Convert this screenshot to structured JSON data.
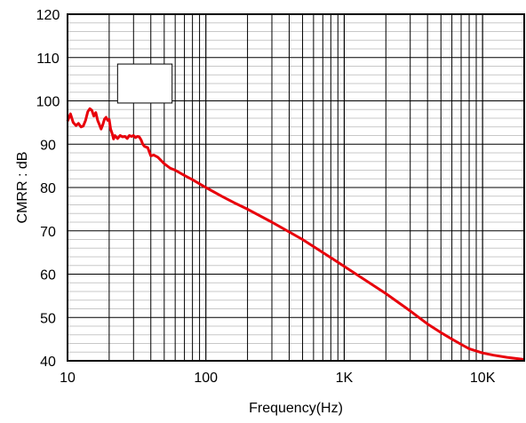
{
  "chart_data": {
    "type": "line",
    "title": "",
    "xlabel": "Frequency(Hz)",
    "ylabel": "CMRR : dB",
    "xscale": "log",
    "xlim": [
      10,
      20000
    ],
    "ylim": [
      40,
      120
    ],
    "grid": "on",
    "x_ticks": [
      10,
      100,
      1000,
      10000
    ],
    "x_tick_labels": [
      "10",
      "100",
      "1K",
      "10K"
    ],
    "y_ticks": [
      40,
      50,
      60,
      70,
      80,
      90,
      100,
      110,
      120
    ],
    "y_tick_labels": [
      "40",
      "50",
      "60",
      "70",
      "80",
      "90",
      "100",
      "110",
      "120"
    ],
    "inset_box": {
      "x": [
        23,
        57
      ],
      "y": [
        99.5,
        108.5
      ]
    },
    "series": [
      {
        "color": "#e8000b",
        "x": [
          10,
          10.5,
          11,
          11.5,
          12,
          12.5,
          13,
          13.5,
          14,
          14.5,
          15,
          15.5,
          16,
          16.5,
          17,
          17.5,
          18,
          18.5,
          19,
          19.5,
          20,
          20.5,
          21,
          21.5,
          22,
          23,
          24,
          25,
          26,
          27,
          28,
          29,
          30,
          31,
          32,
          33,
          34,
          35,
          36,
          38,
          40,
          42,
          45,
          50,
          55,
          60,
          70,
          80,
          100,
          130,
          160,
          200,
          300,
          500,
          700,
          1000,
          2000,
          3000,
          4000,
          5000,
          6000,
          7000,
          8000,
          10000,
          12000,
          15000,
          20000
        ],
        "y": [
          95.3,
          97,
          95,
          94.3,
          94.8,
          94,
          94.2,
          95.5,
          97.5,
          98.2,
          97.8,
          96.5,
          97.3,
          95.5,
          94.5,
          93.5,
          94.5,
          95.8,
          96.2,
          95.5,
          95.7,
          93.5,
          92.5,
          91.2,
          92,
          91.3,
          92,
          91.7,
          91.8,
          91.3,
          92,
          91.8,
          92,
          91.5,
          91.8,
          91.7,
          91,
          90,
          89.5,
          89.2,
          87.3,
          87.5,
          87,
          85.5,
          84.5,
          84,
          82.8,
          81.8,
          80,
          78,
          76.5,
          75,
          72,
          68,
          65,
          61.8,
          55.5,
          51.5,
          48.5,
          46.5,
          45,
          43.8,
          42.8,
          41.8,
          41.3,
          40.8,
          40.3
        ]
      }
    ]
  }
}
